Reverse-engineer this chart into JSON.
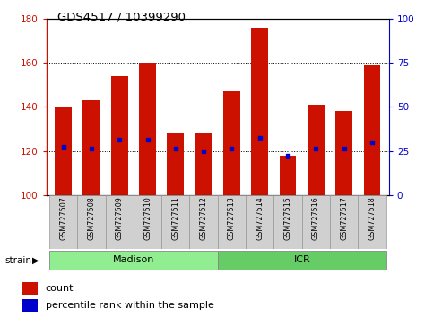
{
  "title": "GDS4517 / 10399290",
  "samples": [
    "GSM727507",
    "GSM727508",
    "GSM727509",
    "GSM727510",
    "GSM727511",
    "GSM727512",
    "GSM727513",
    "GSM727514",
    "GSM727515",
    "GSM727516",
    "GSM727517",
    "GSM727518"
  ],
  "counts": [
    140,
    143,
    154,
    160,
    128,
    128,
    147,
    176,
    118,
    141,
    138,
    159
  ],
  "percentile_ranks": [
    122,
    121,
    125,
    125,
    121,
    120,
    121,
    126,
    118,
    121,
    121,
    124
  ],
  "strains": [
    {
      "label": "Madison",
      "start": 0,
      "end": 6,
      "color": "#90EE90"
    },
    {
      "label": "ICR",
      "start": 6,
      "end": 12,
      "color": "#66CC66"
    }
  ],
  "ymin": 100,
  "ymax": 180,
  "yticks_left": [
    100,
    120,
    140,
    160,
    180
  ],
  "yticks_right": [
    0,
    25,
    50,
    75,
    100
  ],
  "bar_color": "#CC1100",
  "dot_color": "#0000CC",
  "left_axis_color": "#CC1100",
  "right_axis_color": "#0000CC",
  "grid_color": "#000000",
  "background_color": "#ffffff",
  "legend_count_label": "count",
  "legend_pct_label": "percentile rank within the sample",
  "strain_label": "strain"
}
